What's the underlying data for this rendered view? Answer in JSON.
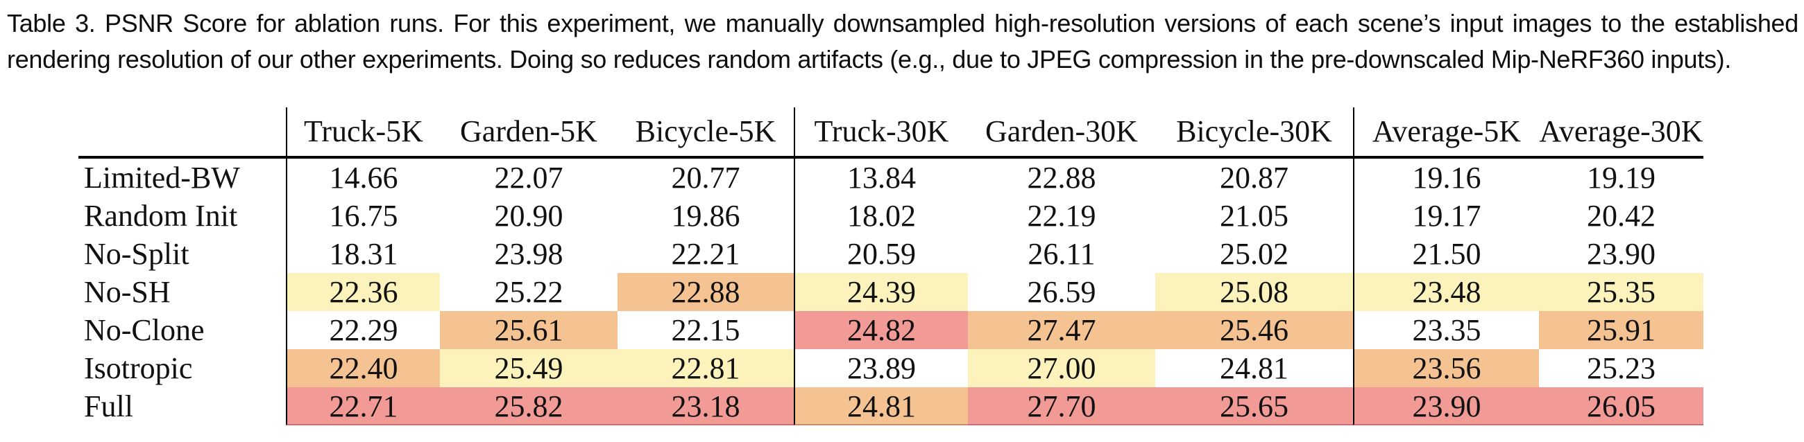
{
  "caption": {
    "text": "Table 3.  PSNR Score for ablation runs. For this experiment, we manually downsampled high-resolution versions of each scene’s input images to the established rendering resolution of our other experiments. Doing so reduces random artifacts (e.g., due to JPEG compression in the pre-downscaled Mip-NeRF360 inputs)."
  },
  "colors": {
    "highlight_yellow": "#FBF3BB",
    "highlight_orange": "#F5C392",
    "highlight_red": "#F19A96",
    "rule_color": "#000000"
  },
  "table": {
    "columns": [
      "",
      "Truck-5K",
      "Garden-5K",
      "Bicycle-5K",
      "Truck-30K",
      "Garden-30K",
      "Bicycle-30K",
      "Average-5K",
      "Average-30K"
    ],
    "rows": [
      {
        "label": "Limited-BW",
        "values": [
          "14.66",
          "22.07",
          "20.77",
          "13.84",
          "22.88",
          "20.87",
          "19.16",
          "19.19"
        ],
        "highlights": [
          "none",
          "none",
          "none",
          "none",
          "none",
          "none",
          "none",
          "none"
        ]
      },
      {
        "label": "Random Init",
        "values": [
          "16.75",
          "20.90",
          "19.86",
          "18.02",
          "22.19",
          "21.05",
          "19.17",
          "20.42"
        ],
        "highlights": [
          "none",
          "none",
          "none",
          "none",
          "none",
          "none",
          "none",
          "none"
        ]
      },
      {
        "label": "No-Split",
        "values": [
          "18.31",
          "23.98",
          "22.21",
          "20.59",
          "26.11",
          "25.02",
          "21.50",
          "23.90"
        ],
        "highlights": [
          "none",
          "none",
          "none",
          "none",
          "none",
          "none",
          "none",
          "none"
        ]
      },
      {
        "label": "No-SH",
        "values": [
          "22.36",
          "25.22",
          "22.88",
          "24.39",
          "26.59",
          "25.08",
          "23.48",
          "25.35"
        ],
        "highlights": [
          "yellow",
          "none",
          "orange",
          "yellow",
          "none",
          "yellow",
          "yellow",
          "yellow"
        ]
      },
      {
        "label": "No-Clone",
        "values": [
          "22.29",
          "25.61",
          "22.15",
          "24.82",
          "27.47",
          "25.46",
          "23.35",
          "25.91"
        ],
        "highlights": [
          "none",
          "orange",
          "none",
          "red",
          "orange",
          "orange",
          "none",
          "orange"
        ]
      },
      {
        "label": "Isotropic",
        "values": [
          "22.40",
          "25.49",
          "22.81",
          "23.89",
          "27.00",
          "24.81",
          "23.56",
          "25.23"
        ],
        "highlights": [
          "orange",
          "yellow",
          "yellow",
          "none",
          "yellow",
          "none",
          "orange",
          "none"
        ]
      },
      {
        "label": "Full",
        "values": [
          "22.71",
          "25.82",
          "23.18",
          "24.81",
          "27.70",
          "25.65",
          "23.90",
          "26.05"
        ],
        "highlights": [
          "red",
          "red",
          "red",
          "orange",
          "red",
          "red",
          "red",
          "red"
        ]
      }
    ]
  }
}
